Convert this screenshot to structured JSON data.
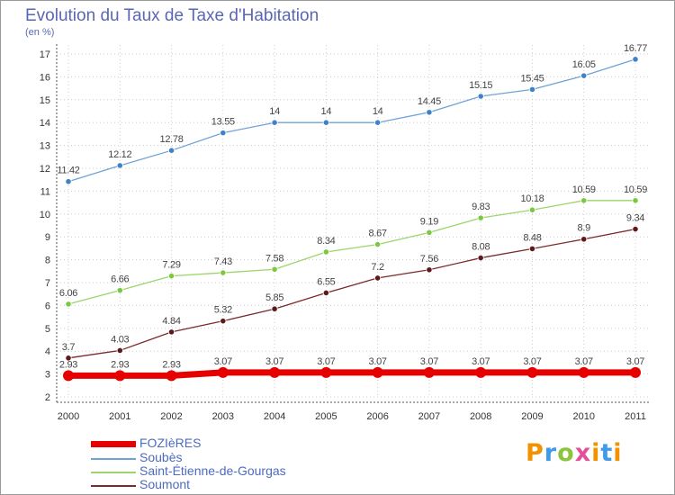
{
  "header": {
    "title": "Evolution du Taux de Taxe d'Habitation",
    "unit": "(en %)"
  },
  "logo": {
    "text": "Proxiti",
    "colors": [
      "#f29200",
      "#3d9be9",
      "#8bc43f",
      "#e64e9b",
      "#f29200",
      "#3d9be9",
      "#f29200"
    ]
  },
  "chart_data": {
    "type": "line",
    "x": [
      2000,
      2001,
      2002,
      2003,
      2004,
      2005,
      2006,
      2007,
      2008,
      2009,
      2010,
      2011
    ],
    "xlabel": "",
    "ylabel": "(en %)",
    "ylim": [
      2,
      17
    ],
    "yticks": [
      2,
      3,
      4,
      5,
      6,
      7,
      8,
      9,
      10,
      11,
      12,
      13,
      14,
      15,
      16,
      17
    ],
    "grid": true,
    "legend_position": "bottom-left",
    "series": [
      {
        "name": "FOZIèRES",
        "color": "#e60000",
        "marker_color": "#e60000",
        "values": [
          2.93,
          2.93,
          2.93,
          3.07,
          3.07,
          3.07,
          3.07,
          3.07,
          3.07,
          3.07,
          3.07,
          3.07
        ],
        "labels": [
          "2.93",
          "2.93",
          "2.93",
          "3.07",
          "3.07",
          "3.07",
          "3.07",
          "3.07",
          "3.07",
          "3.07",
          "3.07",
          "3.07"
        ]
      },
      {
        "name": "Soubès",
        "color": "#6fa3d6",
        "marker_color": "#3f82c8",
        "values": [
          11.42,
          12.12,
          12.78,
          13.55,
          14,
          14,
          14,
          14.45,
          15.15,
          15.45,
          16.05,
          16.77
        ],
        "labels": [
          "11.42",
          "12.12",
          "12.78",
          "13.55",
          "14",
          "14",
          "14",
          "14.45",
          "15.15",
          "15.45",
          "16.05",
          "16.77"
        ]
      },
      {
        "name": "Saint-Étienne-de-Gourgas",
        "color": "#9bd56b",
        "marker_color": "#7cc840",
        "values": [
          6.06,
          6.66,
          7.29,
          7.43,
          7.58,
          8.34,
          8.67,
          9.19,
          9.83,
          10.18,
          10.59,
          10.59
        ],
        "labels": [
          "6.06",
          "6.66",
          "7.29",
          "7.43",
          "7.58",
          "8.34",
          "8.67",
          "9.19",
          "9.83",
          "10.18",
          "10.59",
          "10.59"
        ]
      },
      {
        "name": "Soumont",
        "color": "#7a2b2b",
        "marker_color": "#5c1a1a",
        "values": [
          3.7,
          4.03,
          4.84,
          5.32,
          5.85,
          6.55,
          7.2,
          7.56,
          8.08,
          8.48,
          8.9,
          9.34
        ],
        "labels": [
          "3.7",
          "4.03",
          "4.84",
          "5.32",
          "5.85",
          "6.55",
          "7.2",
          "7.56",
          "8.08",
          "8.48",
          "8.9",
          "9.34"
        ]
      }
    ]
  }
}
